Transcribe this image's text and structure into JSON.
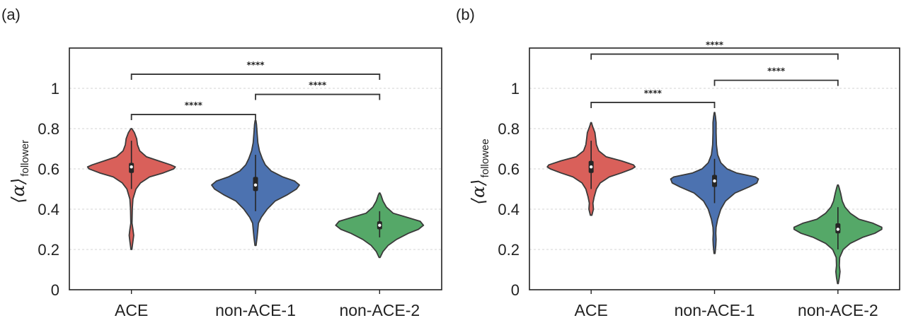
{
  "figure": {
    "panel_labels": [
      "(a)",
      "(b)"
    ]
  },
  "colors": {
    "ACE": "#d9605a",
    "non-ACE-1": "#4c72b0",
    "non-ACE-2": "#55a868",
    "outline": "#3a3a3a",
    "grid": "#d3d3d3",
    "box": "#262626",
    "median_dot": "#ffffff"
  },
  "chart_data": [
    {
      "type": "violin",
      "panel": "(a)",
      "categories": [
        "ACE",
        "non-ACE-1",
        "non-ACE-2"
      ],
      "ylabel": "⟨α⟩",
      "ylabel_subscript": "follower",
      "ylim": [
        0,
        1.2
      ],
      "yticks": [
        0,
        0.2,
        0.4,
        0.6,
        0.8,
        1
      ],
      "ytick_labels": [
        "0",
        "0.2",
        "0.4",
        "0.6",
        "0.8",
        "1"
      ],
      "grid": "horizontal-dashed",
      "series": [
        {
          "category": "ACE",
          "median": 0.61,
          "q1": 0.58,
          "q3": 0.63,
          "whisker_low": 0.5,
          "whisker_high": 0.74,
          "density": [
            [
              0.2,
              0.003
            ],
            [
              0.24,
              0.01
            ],
            [
              0.27,
              0.015
            ],
            [
              0.3,
              0.01
            ],
            [
              0.33,
              0.004
            ],
            [
              0.4,
              0.006
            ],
            [
              0.45,
              0.01
            ],
            [
              0.5,
              0.03
            ],
            [
              0.53,
              0.06
            ],
            [
              0.56,
              0.12
            ],
            [
              0.58,
              0.21
            ],
            [
              0.6,
              0.28
            ],
            [
              0.61,
              0.29
            ],
            [
              0.62,
              0.26
            ],
            [
              0.64,
              0.18
            ],
            [
              0.66,
              0.1
            ],
            [
              0.69,
              0.055
            ],
            [
              0.72,
              0.04
            ],
            [
              0.75,
              0.035
            ],
            [
              0.78,
              0.02
            ],
            [
              0.8,
              0.003
            ]
          ]
        },
        {
          "category": "non-ACE-1",
          "median": 0.52,
          "q1": 0.49,
          "q3": 0.56,
          "whisker_low": 0.39,
          "whisker_high": 0.67,
          "density": [
            [
              0.22,
              0.003
            ],
            [
              0.26,
              0.008
            ],
            [
              0.3,
              0.012
            ],
            [
              0.33,
              0.015
            ],
            [
              0.36,
              0.03
            ],
            [
              0.4,
              0.06
            ],
            [
              0.44,
              0.1
            ],
            [
              0.47,
              0.16
            ],
            [
              0.5,
              0.21
            ],
            [
              0.52,
              0.225
            ],
            [
              0.54,
              0.2
            ],
            [
              0.56,
              0.14
            ],
            [
              0.59,
              0.08
            ],
            [
              0.62,
              0.05
            ],
            [
              0.65,
              0.035
            ],
            [
              0.69,
              0.02
            ],
            [
              0.73,
              0.012
            ],
            [
              0.78,
              0.008
            ],
            [
              0.82,
              0.005
            ],
            [
              0.84,
              0.002
            ]
          ]
        },
        {
          "category": "non-ACE-2",
          "median": 0.32,
          "q1": 0.3,
          "q3": 0.34,
          "whisker_low": 0.26,
          "whisker_high": 0.39,
          "density": [
            [
              0.16,
              0.003
            ],
            [
              0.19,
              0.02
            ],
            [
              0.22,
              0.05
            ],
            [
              0.25,
              0.1
            ],
            [
              0.28,
              0.17
            ],
            [
              0.3,
              0.23
            ],
            [
              0.32,
              0.26
            ],
            [
              0.34,
              0.24
            ],
            [
              0.36,
              0.16
            ],
            [
              0.38,
              0.08
            ],
            [
              0.41,
              0.04
            ],
            [
              0.44,
              0.02
            ],
            [
              0.47,
              0.008
            ],
            [
              0.48,
              0.002
            ]
          ]
        }
      ],
      "significance": [
        {
          "from": "ACE",
          "to": "non-ACE-1",
          "y": 0.87,
          "label": "****"
        },
        {
          "from": "non-ACE-1",
          "to": "non-ACE-2",
          "y": 0.97,
          "label": "****"
        },
        {
          "from": "ACE",
          "to": "non-ACE-2",
          "y": 1.07,
          "label": "****"
        }
      ]
    },
    {
      "type": "violin",
      "panel": "(b)",
      "categories": [
        "ACE",
        "non-ACE-1",
        "non-ACE-2"
      ],
      "ylabel": "⟨α⟩",
      "ylabel_subscript": "followee",
      "ylim": [
        0,
        1.2
      ],
      "yticks": [
        0,
        0.2,
        0.4,
        0.6,
        0.8,
        1
      ],
      "ytick_labels": [
        "0",
        "0.2",
        "0.4",
        "0.6",
        "0.8",
        "1"
      ],
      "grid": "horizontal-dashed",
      "series": [
        {
          "category": "ACE",
          "median": 0.61,
          "q1": 0.58,
          "q3": 0.64,
          "whisker_low": 0.5,
          "whisker_high": 0.74,
          "density": [
            [
              0.37,
              0.005
            ],
            [
              0.4,
              0.015
            ],
            [
              0.43,
              0.012
            ],
            [
              0.46,
              0.02
            ],
            [
              0.5,
              0.035
            ],
            [
              0.53,
              0.06
            ],
            [
              0.56,
              0.12
            ],
            [
              0.58,
              0.2
            ],
            [
              0.6,
              0.27
            ],
            [
              0.61,
              0.29
            ],
            [
              0.62,
              0.28
            ],
            [
              0.64,
              0.2
            ],
            [
              0.66,
              0.1
            ],
            [
              0.69,
              0.05
            ],
            [
              0.72,
              0.035
            ],
            [
              0.75,
              0.03
            ],
            [
              0.78,
              0.025
            ],
            [
              0.81,
              0.01
            ],
            [
              0.83,
              0.002
            ]
          ]
        },
        {
          "category": "non-ACE-1",
          "median": 0.54,
          "q1": 0.51,
          "q3": 0.57,
          "whisker_low": 0.43,
          "whisker_high": 0.65,
          "density": [
            [
              0.18,
              0.003
            ],
            [
              0.22,
              0.008
            ],
            [
              0.25,
              0.01
            ],
            [
              0.28,
              0.008
            ],
            [
              0.31,
              0.01
            ],
            [
              0.35,
              0.02
            ],
            [
              0.4,
              0.04
            ],
            [
              0.44,
              0.07
            ],
            [
              0.48,
              0.13
            ],
            [
              0.51,
              0.22
            ],
            [
              0.53,
              0.27
            ],
            [
              0.55,
              0.28
            ],
            [
              0.56,
              0.26
            ],
            [
              0.58,
              0.14
            ],
            [
              0.6,
              0.08
            ],
            [
              0.63,
              0.04
            ],
            [
              0.67,
              0.02
            ],
            [
              0.72,
              0.012
            ],
            [
              0.78,
              0.01
            ],
            [
              0.83,
              0.01
            ],
            [
              0.86,
              0.006
            ],
            [
              0.88,
              0.002
            ]
          ]
        },
        {
          "category": "non-ACE-2",
          "median": 0.3,
          "q1": 0.28,
          "q3": 0.33,
          "whisker_low": 0.2,
          "whisker_high": 0.41,
          "density": [
            [
              0.03,
              0.002
            ],
            [
              0.06,
              0.008
            ],
            [
              0.09,
              0.012
            ],
            [
              0.12,
              0.008
            ],
            [
              0.16,
              0.01
            ],
            [
              0.2,
              0.03
            ],
            [
              0.23,
              0.07
            ],
            [
              0.26,
              0.14
            ],
            [
              0.28,
              0.21
            ],
            [
              0.3,
              0.25
            ],
            [
              0.31,
              0.25
            ],
            [
              0.33,
              0.2
            ],
            [
              0.35,
              0.12
            ],
            [
              0.38,
              0.07
            ],
            [
              0.41,
              0.04
            ],
            [
              0.44,
              0.025
            ],
            [
              0.48,
              0.015
            ],
            [
              0.51,
              0.006
            ],
            [
              0.52,
              0.002
            ]
          ]
        }
      ],
      "significance": [
        {
          "from": "ACE",
          "to": "non-ACE-1",
          "y": 0.93,
          "label": "****"
        },
        {
          "from": "non-ACE-1",
          "to": "non-ACE-2",
          "y": 1.04,
          "label": "****"
        },
        {
          "from": "ACE",
          "to": "non-ACE-2",
          "y": 1.17,
          "label": "****"
        }
      ]
    }
  ]
}
